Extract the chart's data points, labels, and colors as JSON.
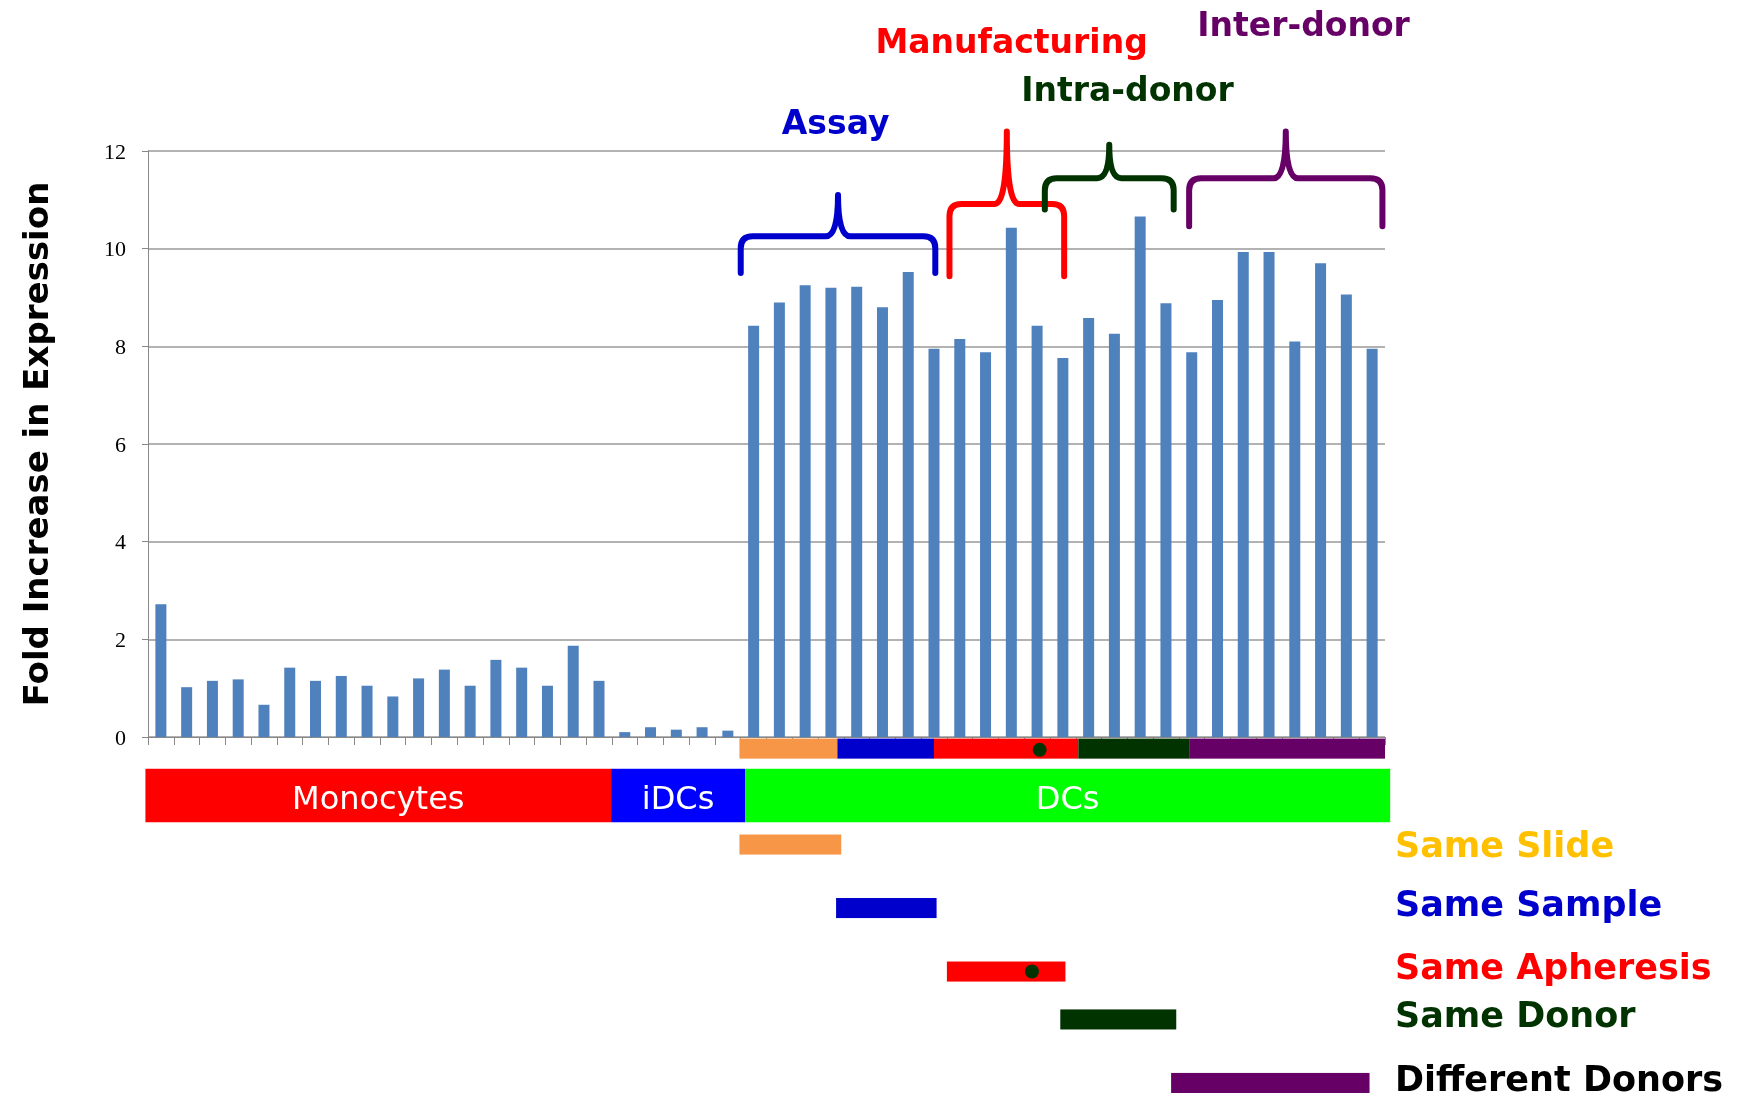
{
  "chart_data": {
    "type": "bar",
    "ylabel": "Fold Increase in Expression",
    "categories": [
      null,
      null,
      null,
      null,
      null,
      null,
      null,
      null,
      null,
      null,
      null,
      null,
      null,
      null,
      null,
      null,
      null,
      null,
      null,
      null,
      null,
      null,
      null,
      null,
      null,
      null,
      null,
      null,
      null,
      null,
      null,
      null,
      null,
      null,
      null,
      null,
      null,
      null,
      null,
      null,
      null,
      null,
      null,
      null,
      null,
      null,
      null,
      null
    ],
    "values": [
      2.72,
      1.02,
      1.15,
      1.18,
      0.66,
      1.42,
      1.15,
      1.25,
      1.05,
      0.83,
      1.2,
      1.38,
      1.05,
      1.58,
      1.42,
      1.05,
      1.87,
      1.15,
      0.1,
      0.2,
      0.15,
      0.2,
      0.13,
      8.42,
      8.9,
      9.25,
      9.2,
      9.22,
      8.8,
      9.52,
      7.95,
      8.15,
      7.88,
      10.43,
      8.42,
      7.76,
      8.58,
      8.26,
      10.66,
      8.88,
      7.88,
      8.95,
      9.93,
      9.93,
      8.1,
      9.7,
      9.06,
      7.95
    ],
    "color": "#4f81bd",
    "ylim": [
      0,
      12
    ],
    "yticks": [
      0,
      2,
      4,
      6,
      8,
      10,
      12
    ],
    "grid": "y",
    "annotations": [
      "Monocytes",
      "iDCs",
      "DCs",
      "Assay",
      "Manufacturing",
      "Intra-donor",
      "Inter-donor",
      "Same Slide",
      "Same Sample",
      "Same Apheresis",
      "Same Donor",
      "Different Donors"
    ]
  }
}
